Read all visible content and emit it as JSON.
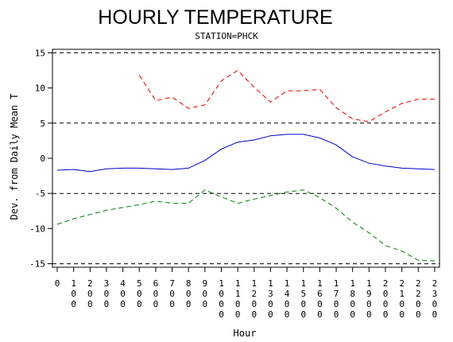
{
  "chart_data": {
    "type": "line",
    "title": "HOURLY TEMPERATURE",
    "subtitle": "STATION=PHCK",
    "xlabel": "Hour",
    "ylabel": "Dev. from Daily Mean T",
    "x": [
      0,
      1,
      2,
      3,
      4,
      5,
      6,
      7,
      8,
      9,
      10,
      11,
      12,
      13,
      14,
      15,
      16,
      17,
      18,
      19,
      20,
      21,
      22,
      23
    ],
    "x_tick_labels": [
      [
        "0"
      ],
      [
        "1",
        "0",
        "0"
      ],
      [
        "2",
        "0",
        "0"
      ],
      [
        "3",
        "0",
        "0"
      ],
      [
        "4",
        "0",
        "0"
      ],
      [
        "5",
        "0",
        "0"
      ],
      [
        "6",
        "0",
        "0"
      ],
      [
        "7",
        "0",
        "0"
      ],
      [
        "8",
        "0",
        "0"
      ],
      [
        "9",
        "0",
        "0"
      ],
      [
        "1",
        "0",
        "0",
        "0"
      ],
      [
        "1",
        "1",
        "0",
        "0"
      ],
      [
        "1",
        "2",
        "0",
        "0"
      ],
      [
        "1",
        "3",
        "0",
        "0"
      ],
      [
        "1",
        "4",
        "0",
        "0"
      ],
      [
        "1",
        "5",
        "0",
        "0"
      ],
      [
        "1",
        "6",
        "0",
        "0"
      ],
      [
        "1",
        "7",
        "0",
        "0"
      ],
      [
        "1",
        "8",
        "0",
        "0"
      ],
      [
        "1",
        "9",
        "0",
        "0"
      ],
      [
        "2",
        "0",
        "0",
        "0"
      ],
      [
        "2",
        "1",
        "0",
        "0"
      ],
      [
        "2",
        "2",
        "0",
        "0"
      ],
      [
        "2",
        "3",
        "0",
        "0"
      ]
    ],
    "y_ticks": [
      -15,
      -10,
      -5,
      0,
      5,
      10,
      15
    ],
    "ylim": [
      -15.5,
      15.5
    ],
    "reference_lines": [
      15,
      5,
      -5,
      -15
    ],
    "grid": false,
    "series": [
      {
        "color": "#e00000",
        "dash": "dashed",
        "x": [
          5,
          6,
          7,
          8,
          9,
          10,
          11,
          12,
          13,
          14,
          15,
          16,
          17,
          18,
          19,
          20,
          21,
          22,
          23
        ],
        "values": [
          11.8,
          8.2,
          8.7,
          7.1,
          7.6,
          11.0,
          12.5,
          10.1,
          8.0,
          9.6,
          9.6,
          9.8,
          7.2,
          5.6,
          5.2,
          6.6,
          7.8,
          8.4,
          8.4
        ]
      },
      {
        "color": "#0000cc",
        "dash": "solid",
        "x": [
          0,
          1,
          2,
          3,
          4,
          5,
          6,
          7,
          8,
          9,
          10,
          11,
          12,
          13,
          14,
          15,
          16,
          17,
          18,
          19,
          20,
          21,
          22,
          23
        ],
        "values": [
          -1.7,
          -1.6,
          -1.9,
          -1.5,
          -1.4,
          -1.4,
          -1.5,
          -1.6,
          -1.4,
          -0.3,
          1.3,
          2.3,
          2.6,
          3.2,
          3.4,
          3.4,
          2.9,
          1.9,
          0.2,
          -0.7,
          -1.1,
          -1.4,
          -1.5,
          -1.6
        ]
      },
      {
        "color": "#008000",
        "dash": "dashed",
        "x": [
          0,
          1,
          2,
          3,
          4,
          5,
          6,
          7,
          8,
          9,
          10,
          11,
          12,
          13,
          14,
          15,
          16,
          17,
          18,
          19,
          20,
          21,
          22,
          23
        ],
        "values": [
          -9.4,
          -8.6,
          -8.0,
          -7.4,
          -7.0,
          -6.6,
          -6.1,
          -6.4,
          -6.4,
          -4.5,
          -5.5,
          -6.4,
          -5.8,
          -5.3,
          -4.8,
          -4.5,
          -5.6,
          -7.1,
          -9.1,
          -10.6,
          -12.4,
          -13.2,
          -14.5,
          -14.6
        ]
      }
    ]
  }
}
